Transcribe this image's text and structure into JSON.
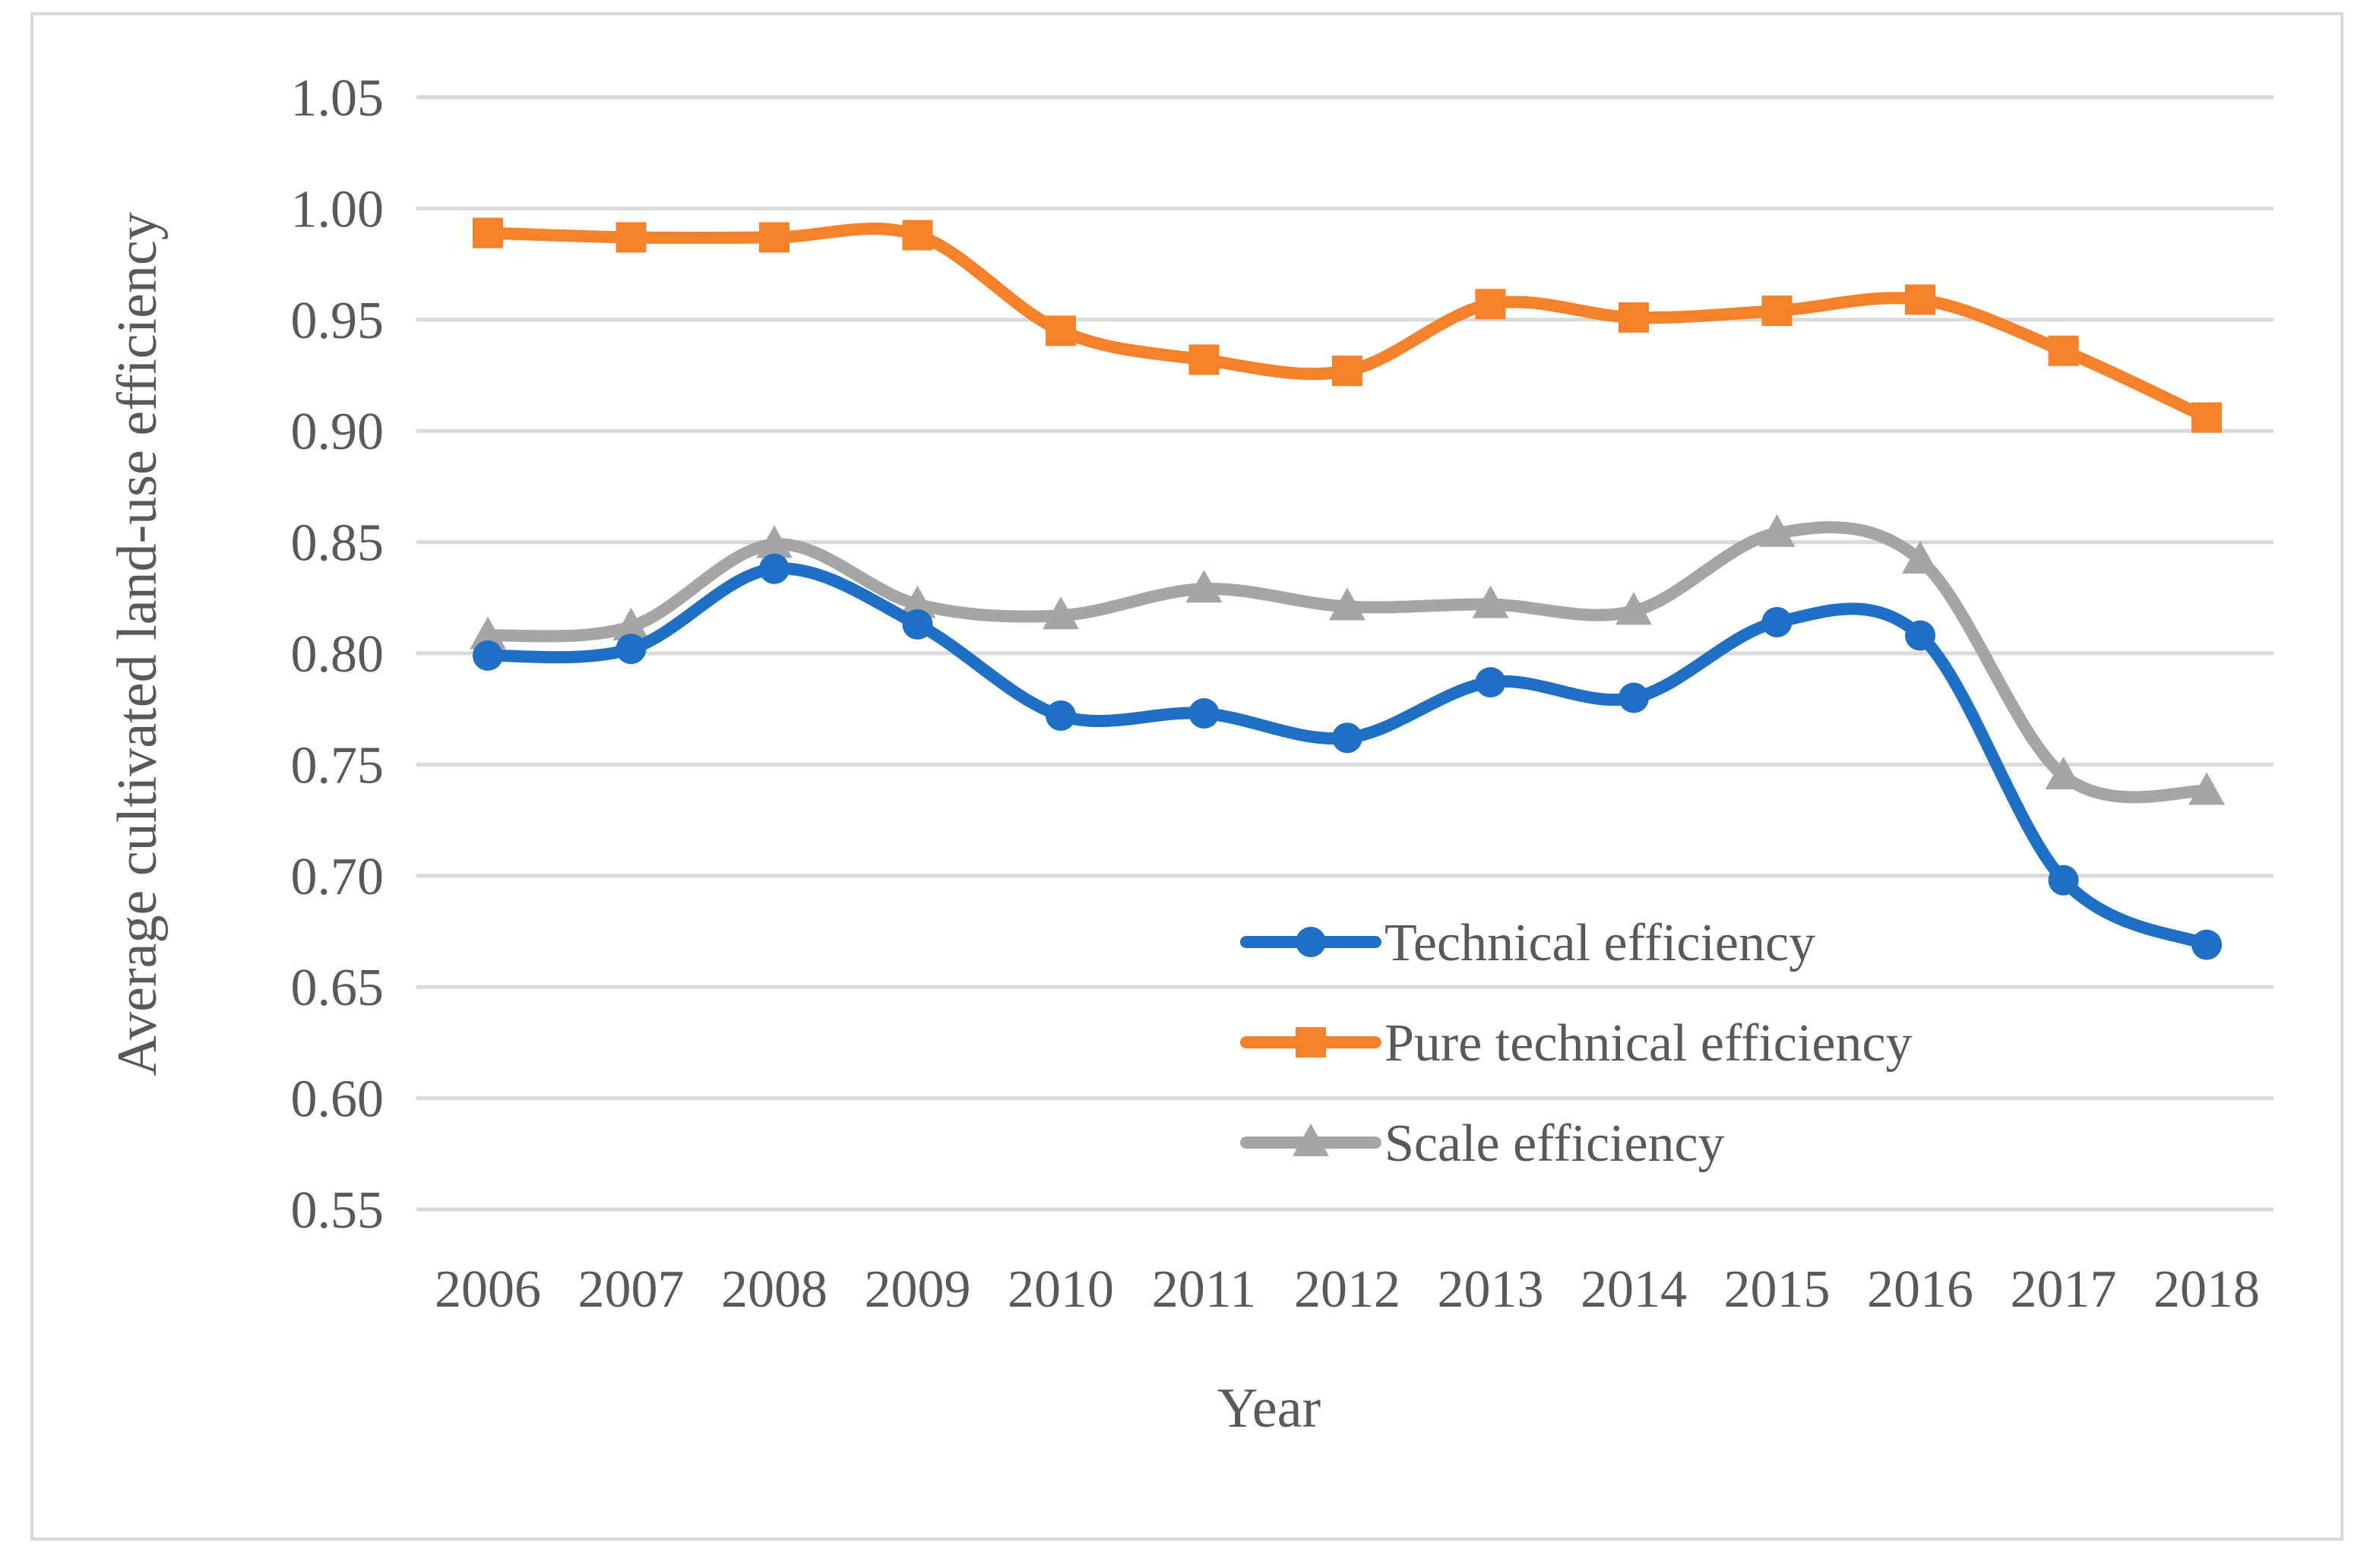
{
  "chart_data": {
    "type": "line",
    "smooth": true,
    "categories": [
      "2006",
      "2007",
      "2008",
      "2009",
      "2010",
      "2011",
      "2012",
      "2013",
      "2014",
      "2015",
      "2016",
      "2017",
      "2018"
    ],
    "series": [
      {
        "name": "Technical efficiency",
        "color": "#1f6fc5",
        "marker": "circle",
        "values": [
          0.799,
          0.802,
          0.838,
          0.813,
          0.772,
          0.773,
          0.762,
          0.787,
          0.78,
          0.814,
          0.808,
          0.698,
          0.669
        ]
      },
      {
        "name": "Pure technical efficiency",
        "color": "#f5812a",
        "marker": "square",
        "values": [
          0.989,
          0.987,
          0.987,
          0.988,
          0.945,
          0.932,
          0.927,
          0.957,
          0.951,
          0.954,
          0.959,
          0.936,
          0.906
        ]
      },
      {
        "name": "Scale efficiency",
        "color": "#a5a5a5",
        "marker": "triangle",
        "values": [
          0.808,
          0.812,
          0.849,
          0.822,
          0.817,
          0.829,
          0.821,
          0.822,
          0.819,
          0.854,
          0.842,
          0.745,
          0.738
        ]
      }
    ],
    "title": "",
    "xlabel": "Year",
    "ylabel": "Average cultivated land-use efficiency",
    "ylim": [
      0.55,
      1.05
    ],
    "ytick_step": 0.05,
    "yticks": [
      "0.55",
      "0.60",
      "0.65",
      "0.70",
      "0.75",
      "0.80",
      "0.85",
      "0.90",
      "0.95",
      "1.00",
      "1.05"
    ],
    "grid": true,
    "legend_position": "lower-right"
  }
}
